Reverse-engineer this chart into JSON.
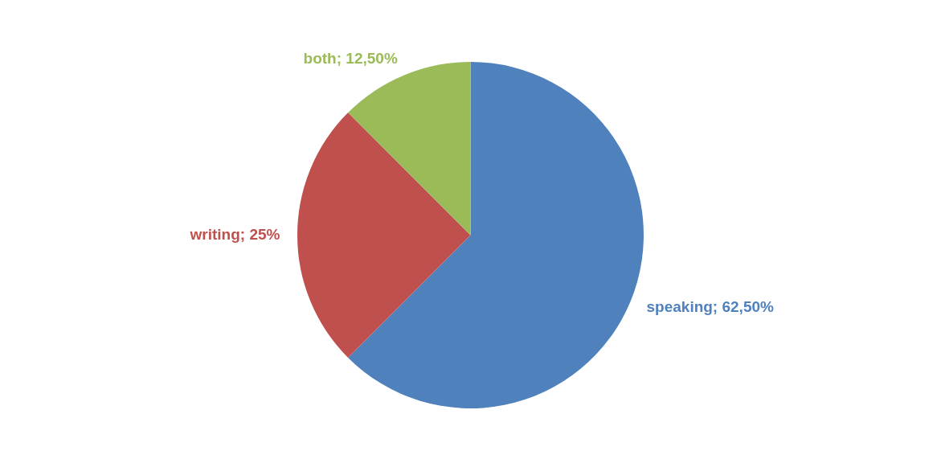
{
  "chart_data": {
    "type": "pie",
    "categories": [
      "speaking",
      "writing",
      "both"
    ],
    "values": [
      62.5,
      25,
      12.5
    ],
    "colors": [
      "#4f81bd",
      "#c0504d",
      "#9bbb59"
    ],
    "value_labels": [
      "62,50%",
      "25%",
      "12,50%"
    ],
    "legend": false
  }
}
